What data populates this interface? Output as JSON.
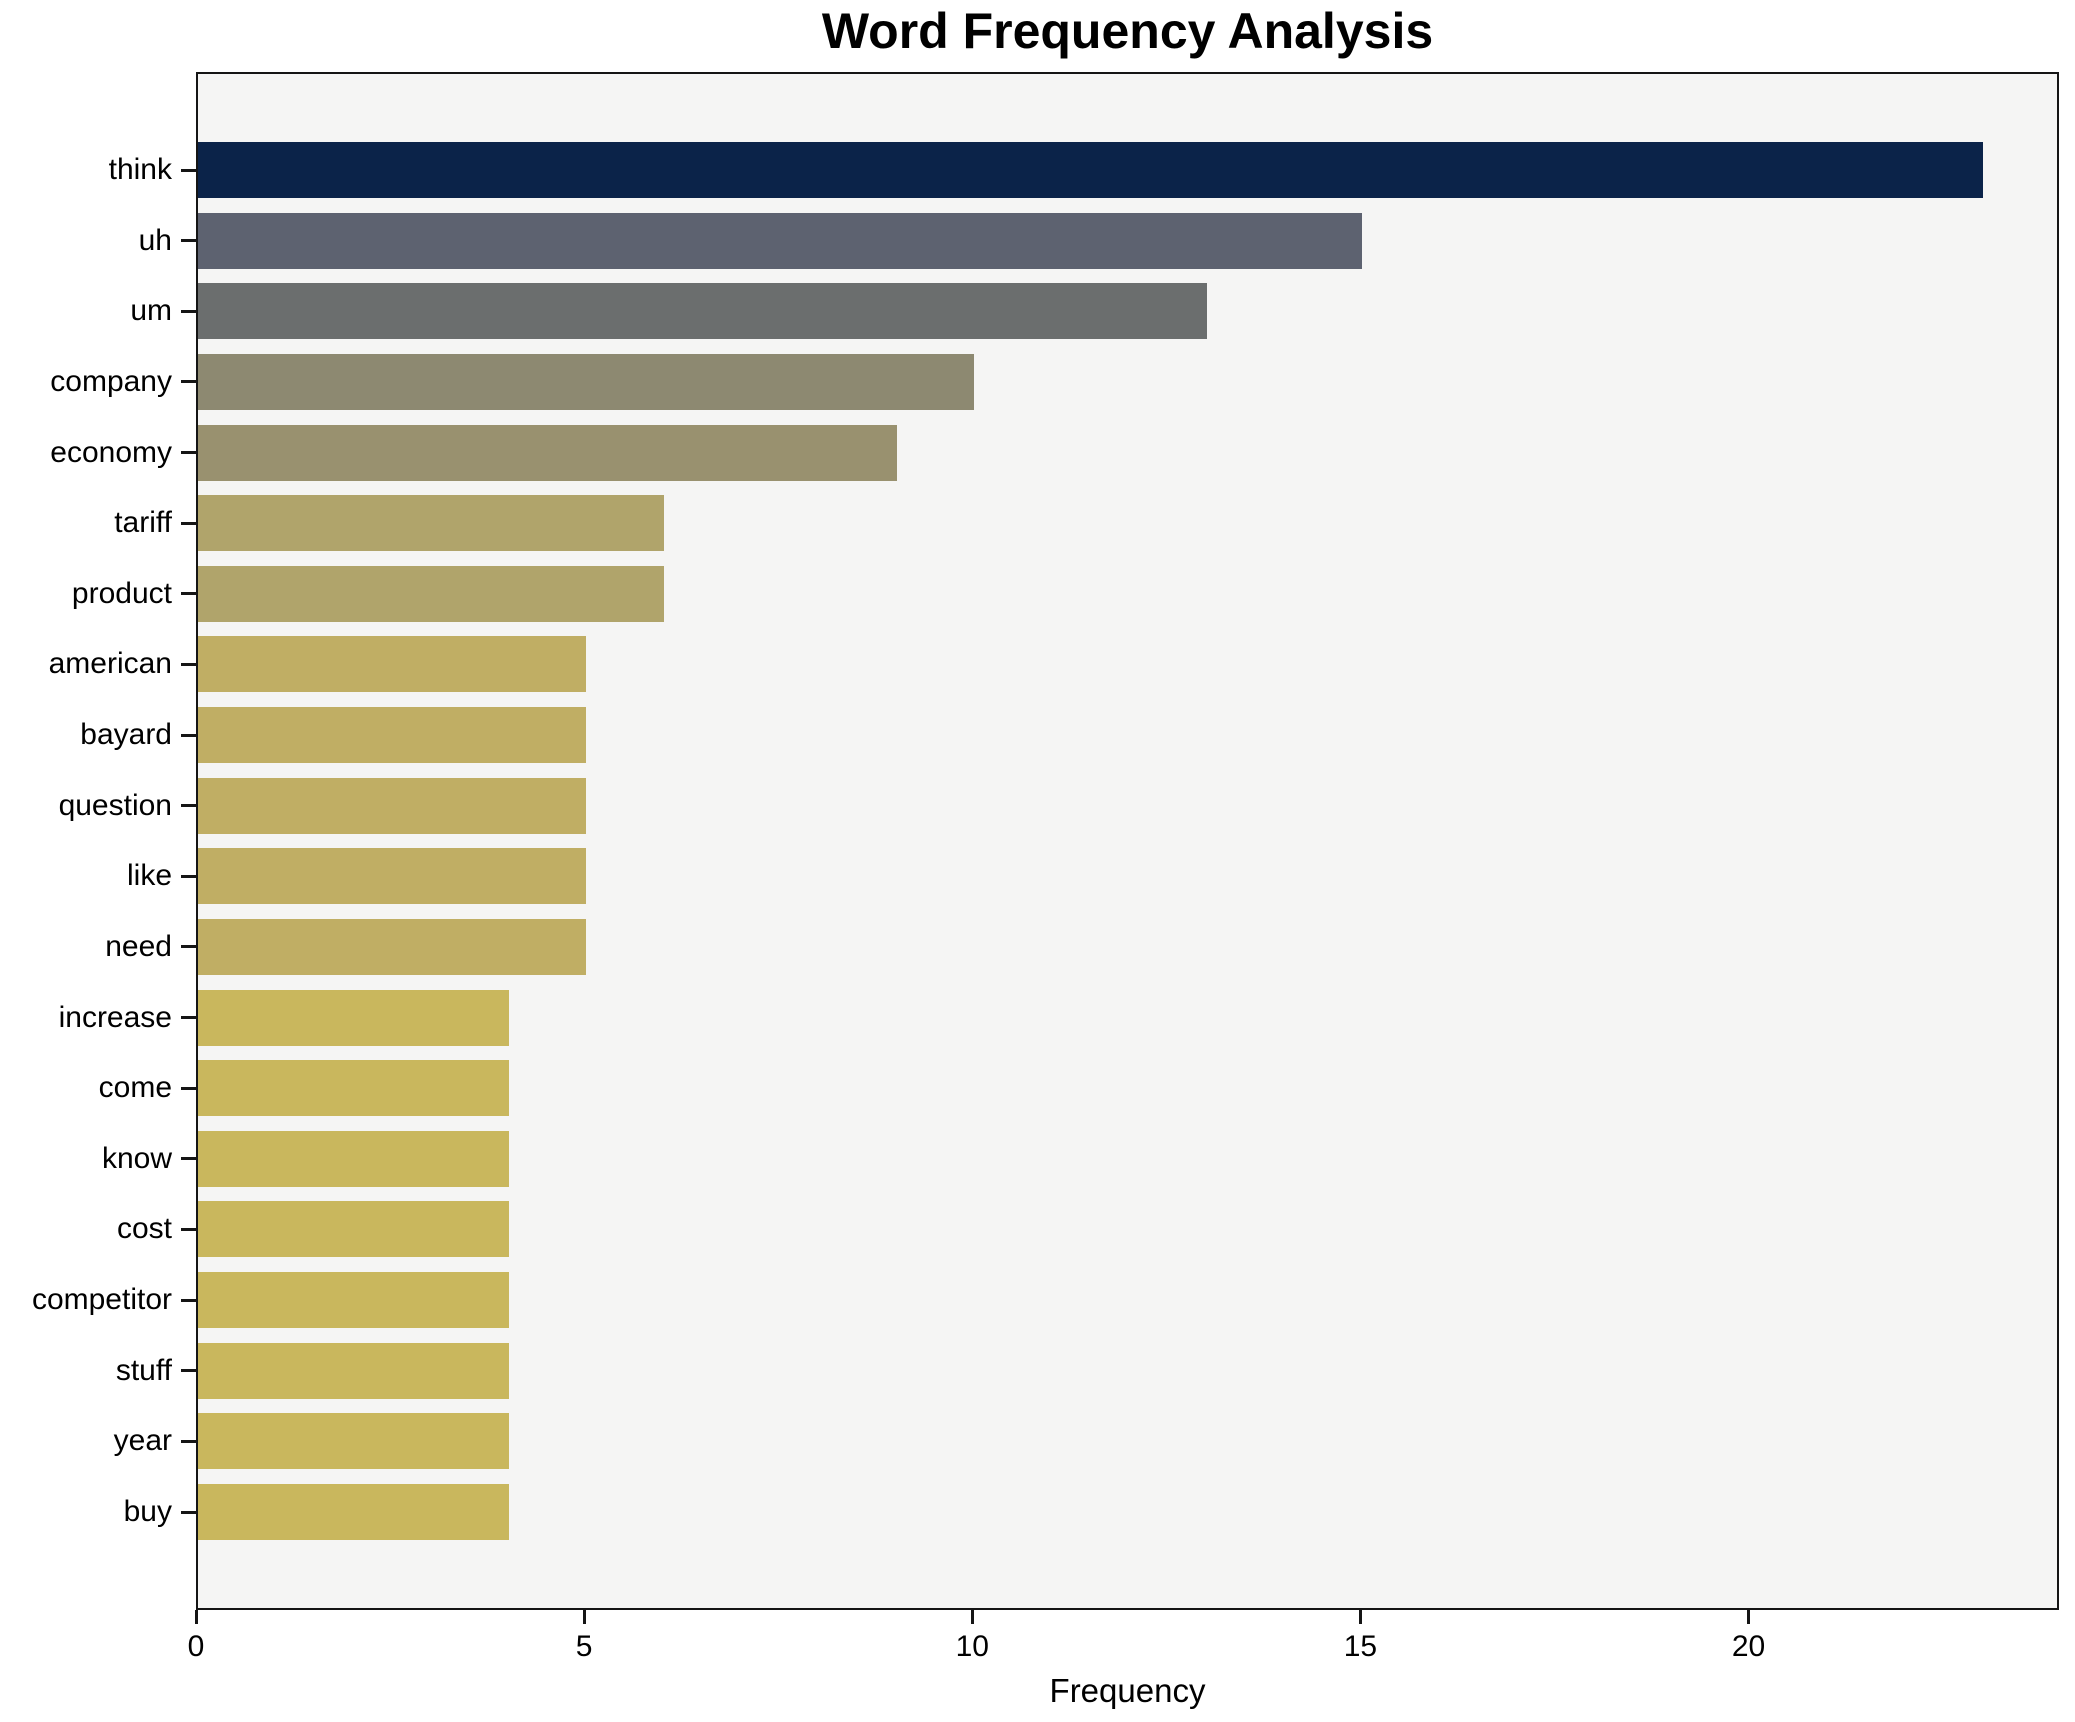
{
  "chart_data": {
    "type": "bar",
    "orientation": "horizontal",
    "title": "Word Frequency Analysis",
    "xlabel": "Frequency",
    "ylabel": "",
    "categories": [
      "think",
      "uh",
      "um",
      "company",
      "economy",
      "tariff",
      "product",
      "american",
      "bayard",
      "question",
      "like",
      "need",
      "increase",
      "come",
      "know",
      "cost",
      "competitor",
      "stuff",
      "year",
      "buy"
    ],
    "values": [
      23,
      15,
      13,
      10,
      9,
      6,
      6,
      5,
      5,
      5,
      5,
      5,
      4,
      4,
      4,
      4,
      4,
      4,
      4,
      4
    ],
    "bar_colors": [
      "#0b2349",
      "#5d6270",
      "#6b6e6e",
      "#8d8971",
      "#99916f",
      "#b0a46b",
      "#b0a46b",
      "#c0ae64",
      "#c0ae64",
      "#c0ae64",
      "#c0ae64",
      "#c0ae64",
      "#c9b75d",
      "#c9b75d",
      "#c9b75d",
      "#c9b75d",
      "#c9b75d",
      "#c9b75d",
      "#c9b75d",
      "#c9b75d"
    ],
    "xlim": [
      0,
      24
    ],
    "xticks": [
      0,
      5,
      10,
      15,
      20
    ],
    "grid": false,
    "legend": null,
    "plot_background": "#f5f5f4",
    "figure_background": "#ffffff",
    "spine_color": "#151515"
  }
}
